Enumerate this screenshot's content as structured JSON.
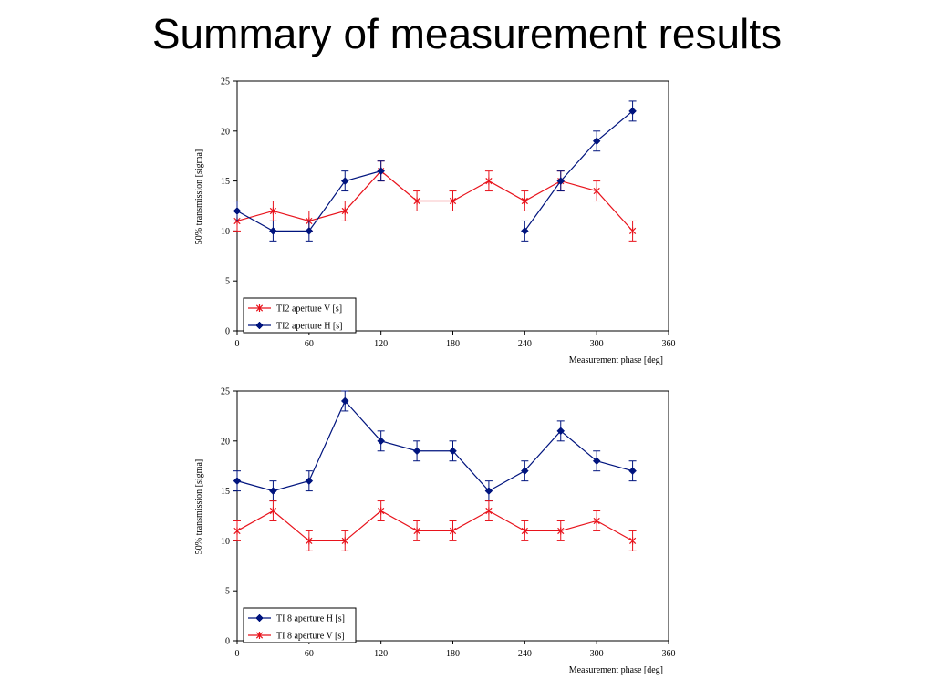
{
  "title": "Summary of measurement results",
  "chart_data": [
    {
      "type": "line",
      "xlabel": "Measurement phase [deg]",
      "ylabel": "50% transmission [sigma]",
      "xlim": [
        0,
        360
      ],
      "ylim": [
        0,
        25
      ],
      "xticks": [
        "0",
        "60",
        "120",
        "180",
        "240",
        "300",
        "360"
      ],
      "yticks": [
        "0",
        "5",
        "10",
        "15",
        "20",
        "25"
      ],
      "grid": false,
      "legend_position": "bottom-left",
      "series": [
        {
          "name": "TI2 aperture V [s]",
          "color": "#e8131c",
          "marker": "star",
          "x": [
            0,
            30,
            60,
            90,
            120,
            150,
            180,
            210,
            240,
            270,
            300,
            330
          ],
          "y": [
            11,
            12,
            11,
            12,
            16,
            13,
            13,
            15,
            13,
            15,
            14,
            10
          ],
          "error": 1
        },
        {
          "name": "TI2 aperture H [s]",
          "color": "#00147e",
          "marker": "diamond",
          "x": [
            0,
            30,
            60,
            90,
            120,
            240,
            270,
            300,
            330
          ],
          "y": [
            12,
            10,
            10,
            15,
            16,
            10,
            15,
            19,
            22
          ],
          "break_after_index": 4,
          "error": 1
        }
      ]
    },
    {
      "type": "line",
      "xlabel": "Measurement phase [deg]",
      "ylabel": "50% transmission [sigma]",
      "xlim": [
        0,
        360
      ],
      "ylim": [
        0,
        25
      ],
      "xticks": [
        "0",
        "60",
        "120",
        "180",
        "240",
        "300",
        "360"
      ],
      "yticks": [
        "0",
        "5",
        "10",
        "15",
        "20",
        "25"
      ],
      "grid": false,
      "legend_position": "bottom-left",
      "series": [
        {
          "name": "TI 8 aperture H [s]",
          "color": "#00147e",
          "marker": "diamond",
          "x": [
            0,
            30,
            60,
            90,
            120,
            150,
            180,
            210,
            240,
            270,
            300,
            330
          ],
          "y": [
            16,
            15,
            16,
            24,
            20,
            19,
            19,
            15,
            17,
            21,
            18,
            17
          ],
          "error": 1
        },
        {
          "name": "TI 8 aperture V [s]",
          "color": "#e8131c",
          "marker": "star",
          "x": [
            0,
            30,
            60,
            90,
            120,
            150,
            180,
            210,
            240,
            270,
            300,
            330
          ],
          "y": [
            11,
            13,
            10,
            10,
            13,
            11,
            11,
            13,
            11,
            11,
            12,
            10
          ],
          "error": 1
        }
      ]
    }
  ]
}
